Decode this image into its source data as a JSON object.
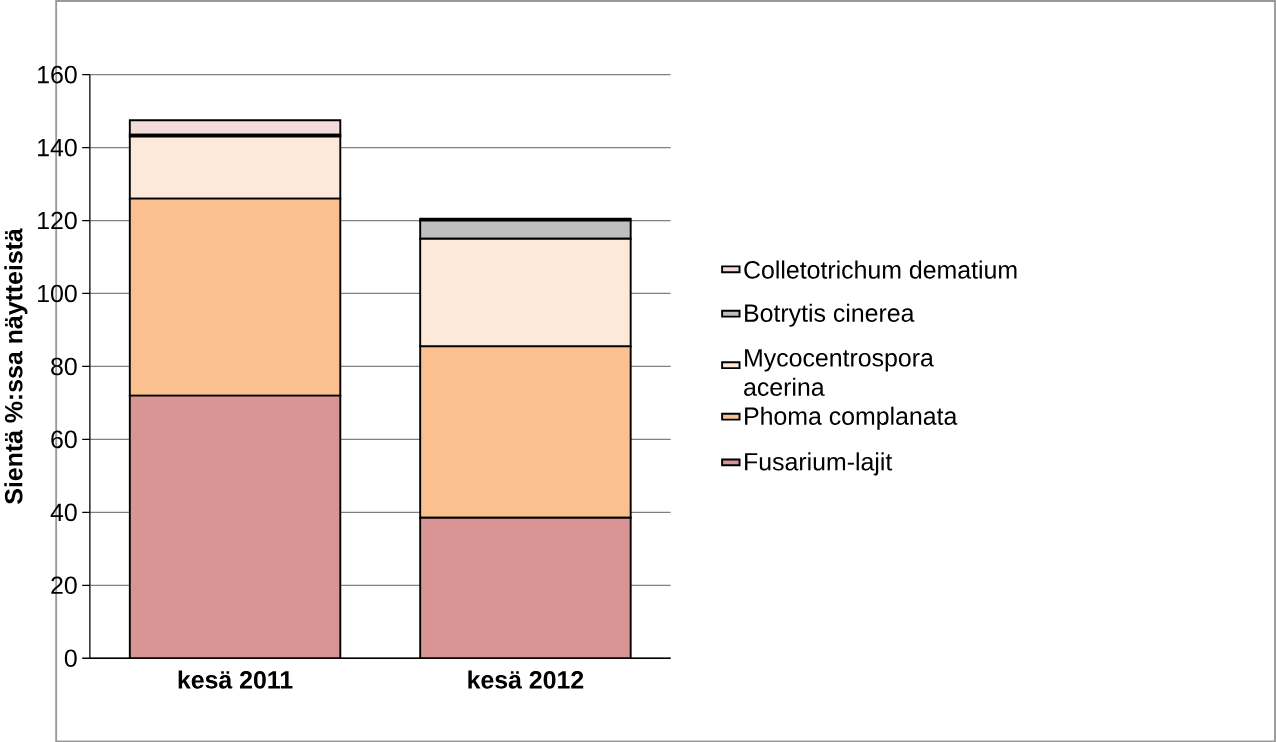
{
  "chart_data": {
    "type": "bar",
    "stacked": true,
    "ylabel": "Sientä %:ssa näytteistä",
    "categories": [
      "kesä 2011",
      "kesä 2012"
    ],
    "series": [
      {
        "name": "Fusarium-lajit",
        "color": "#d99594",
        "values": [
          72,
          38.5
        ]
      },
      {
        "name": "Phoma complanata",
        "color": "#fac090",
        "values": [
          54,
          47
        ]
      },
      {
        "name": "Mycocentrospora acerina",
        "color": "#fde9d9",
        "values": [
          17,
          29.5
        ]
      },
      {
        "name": "Botrytis cinerea",
        "color": "#bfbfbf",
        "values": [
          0.5,
          5
        ]
      },
      {
        "name": "Colletotrichum dematium",
        "color": "#f2dcdb",
        "values": [
          4,
          0.5
        ]
      }
    ],
    "ylim": [
      0,
      160
    ],
    "yticks": [
      0,
      20,
      40,
      60,
      80,
      100,
      120,
      140,
      160
    ],
    "grid": "y",
    "legend": "right"
  }
}
